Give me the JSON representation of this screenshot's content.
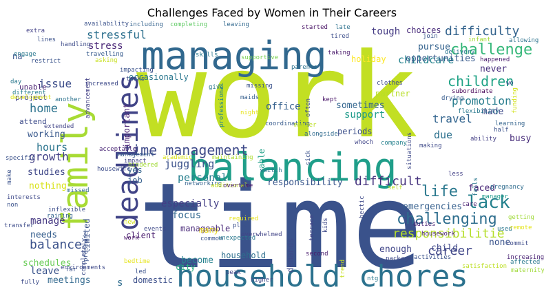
{
  "chart_data": {
    "type": "wordcloud",
    "title": "Challenges Faced by Women in Their Careers",
    "words": [
      {
        "text": "work",
        "color": "#c2df23"
      },
      {
        "text": "time",
        "color": "#3a528b"
      },
      {
        "text": "balancing",
        "color": "#1f9e89"
      },
      {
        "text": "household chores",
        "color": "#2c728e"
      },
      {
        "text": "managing",
        "color": "#31688e"
      },
      {
        "text": "family",
        "color": "#a8db34"
      },
      {
        "text": "deadlines",
        "color": "#414487"
      },
      {
        "text": "time management",
        "color": "#3e4a89"
      },
      {
        "text": "difficulty",
        "color": "#33638d"
      },
      {
        "text": "challenge",
        "color": "#35b779"
      },
      {
        "text": "lack",
        "color": "#26828e"
      },
      {
        "text": "challenging",
        "color": "#2e6e8e"
      },
      {
        "text": "responsibilitie",
        "color": "#b5de2b"
      },
      {
        "text": "life",
        "color": "#2a788e"
      },
      {
        "text": "career",
        "color": "#404688"
      },
      {
        "text": "difficult",
        "color": "#46337e"
      },
      {
        "text": "balance",
        "color": "#3b528b"
      },
      {
        "text": "children",
        "color": "#20a386"
      },
      {
        "text": "promotion",
        "color": "#287d8e"
      },
      {
        "text": "stressful",
        "color": "#2d708e"
      },
      {
        "text": "childcare",
        "color": "#25848e"
      },
      {
        "text": "travel",
        "color": "#32648e"
      },
      {
        "text": "home",
        "color": "#2c738e"
      },
      {
        "text": "issue",
        "color": "#3d4e8a"
      },
      {
        "text": "hours",
        "color": "#2b748e"
      },
      {
        "text": "juggling",
        "color": "#3b518b"
      },
      {
        "text": "growth",
        "color": "#424086"
      },
      {
        "text": "personal",
        "color": "#277f8e"
      },
      {
        "text": "support",
        "color": "#1e9b8a"
      },
      {
        "text": "stress",
        "color": "#482475"
      },
      {
        "text": "manage",
        "color": "#453882"
      },
      {
        "text": "focus",
        "color": "#31678e"
      },
      {
        "text": "especially",
        "color": "#433e85"
      },
      {
        "text": "responsibility",
        "color": "#39568c"
      },
      {
        "text": "emergencies",
        "color": "#355f8d"
      },
      {
        "text": "leave",
        "color": "#3a548c"
      },
      {
        "text": "due",
        "color": "#2d718e"
      },
      {
        "text": "sometimes",
        "color": "#32658e"
      },
      {
        "text": "tough",
        "color": "#443a83"
      },
      {
        "text": "opportunities",
        "color": "#375a8c"
      },
      {
        "text": "pursue",
        "color": "#33628d"
      },
      {
        "text": "office",
        "color": "#34608d"
      },
      {
        "text": "working",
        "color": "#38588c"
      },
      {
        "text": "nothing",
        "color": "#d8e219"
      },
      {
        "text": "studies",
        "color": "#3f4788"
      },
      {
        "text": "needs",
        "color": "#355e8d"
      },
      {
        "text": "meetings",
        "color": "#31688e"
      },
      {
        "text": "schedules",
        "color": "#6ccd5a"
      },
      {
        "text": "made",
        "color": "#3e4989"
      },
      {
        "text": "never",
        "color": "#472f7d"
      },
      {
        "text": "busy",
        "color": "#472c7a"
      },
      {
        "text": "faced",
        "color": "#482677"
      },
      {
        "text": "enough",
        "color": "#404588"
      },
      {
        "text": "none",
        "color": "#3a538b"
      },
      {
        "text": "child",
        "color": "#3f4889"
      },
      {
        "text": "periods",
        "color": "#3c4f8a"
      },
      {
        "text": "become",
        "color": "#26818e"
      },
      {
        "text": "domestic",
        "color": "#3c4f8a"
      },
      {
        "text": "city",
        "color": "#29af7f"
      },
      {
        "text": "client",
        "color": "#481c6e"
      },
      {
        "text": "household",
        "color": "#2e6f8e"
      },
      {
        "text": "manageable",
        "color": "#482878"
      },
      {
        "text": "many",
        "color": "#ead91d"
      },
      {
        "text": "limited",
        "color": "#3b528b"
      },
      {
        "text": "yes",
        "color": "#33638d"
      },
      {
        "text": "job",
        "color": "#355f8d"
      },
      {
        "text": "attend",
        "color": "#3e4c8a"
      },
      {
        "text": "unable",
        "color": "#481f70"
      },
      {
        "text": "project",
        "color": "#414487"
      },
      {
        "text": "holiday",
        "color": "#fde725"
      },
      {
        "text": "important",
        "color": "#482173"
      },
      {
        "text": "choices",
        "color": "#472a7a"
      },
      {
        "text": "partner",
        "color": "#b8de29"
      },
      {
        "text": "occasionally",
        "color": "#2a778e"
      },
      {
        "text": "able",
        "color": "#1fa088"
      },
      {
        "text": "demands",
        "color": "#3e4989"
      },
      {
        "text": "s",
        "color": "#2f6c8e"
      },
      {
        "text": "na",
        "color": "#3a538b"
      },
      {
        "text": "availability",
        "color": "#3b528b"
      },
      {
        "text": "extra",
        "color": "#424086"
      },
      {
        "text": "including",
        "color": "#33628d"
      },
      {
        "text": "completing",
        "color": "#5ec962"
      },
      {
        "text": "leaving",
        "color": "#31688e"
      },
      {
        "text": "started",
        "color": "#471164"
      },
      {
        "text": "late",
        "color": "#2d718e"
      },
      {
        "text": "tired",
        "color": "#3d4e8a"
      },
      {
        "text": "join",
        "color": "#39568c"
      },
      {
        "text": "infant",
        "color": "#a5db36"
      },
      {
        "text": "allowing",
        "color": "#2c738e"
      },
      {
        "text": "lines",
        "color": "#3b528b"
      },
      {
        "text": "handling",
        "color": "#3e4c8a"
      },
      {
        "text": "engage",
        "color": "#2a788e"
      },
      {
        "text": "restrict",
        "color": "#3a548c"
      },
      {
        "text": "travelling",
        "color": "#375b8d"
      },
      {
        "text": "asking",
        "color": "#c8e020"
      },
      {
        "text": "skills",
        "color": "#2a788e"
      },
      {
        "text": "supportive",
        "color": "#7ad151"
      },
      {
        "text": "taking",
        "color": "#481769"
      },
      {
        "text": "delivery",
        "color": "#2b748e"
      },
      {
        "text": "happened",
        "color": "#481a6c"
      },
      {
        "text": "parents",
        "color": "#2d718e"
      },
      {
        "text": "impacting",
        "color": "#3b528b"
      },
      {
        "text": "day",
        "color": "#2a788e"
      },
      {
        "text": "tasks",
        "color": "#3d4d8a"
      },
      {
        "text": "increased",
        "color": "#3e4a89"
      },
      {
        "text": "give",
        "color": "#2a788e"
      },
      {
        "text": "missing",
        "color": "#3b528b"
      },
      {
        "text": "clothes",
        "color": "#3e4a89"
      },
      {
        "text": "different",
        "color": "#277f8e"
      },
      {
        "text": "development",
        "color": "#dde318"
      },
      {
        "text": "maids",
        "color": "#355f8d"
      },
      {
        "text": "kept",
        "color": "#481467"
      },
      {
        "text": "drying",
        "color": "#375b8d"
      },
      {
        "text": "subordinate",
        "color": "#440154"
      },
      {
        "text": "wo",
        "color": "#3b528b"
      },
      {
        "text": "another",
        "color": "#2c738e"
      },
      {
        "text": "advancement",
        "color": "#424086"
      },
      {
        "text": "night",
        "color": "#e7e419"
      },
      {
        "text": "flexibility",
        "color": "#29798e"
      },
      {
        "text": "funding",
        "color": "#d2e21b"
      },
      {
        "text": "learning",
        "color": "#33638d"
      },
      {
        "text": "half",
        "color": "#3b528b"
      },
      {
        "text": "extended",
        "color": "#414487"
      },
      {
        "text": "professional",
        "color": "#25838e"
      },
      {
        "text": "coordinating",
        "color": "#375b8d"
      },
      {
        "text": "member",
        "color": "#bddf26"
      },
      {
        "text": "often",
        "color": "#3d4d8a"
      },
      {
        "text": "alongside",
        "color": "#2f6b8e"
      },
      {
        "text": "whoch",
        "color": "#404588"
      },
      {
        "text": "company",
        "color": "#26828e"
      },
      {
        "text": "making",
        "color": "#3e4a89"
      },
      {
        "text": "ability",
        "color": "#433e85"
      },
      {
        "text": "make",
        "color": "#3b528b"
      },
      {
        "text": "acceptable",
        "color": "#482475"
      },
      {
        "text": "management",
        "color": "#375a8c"
      },
      {
        "text": "impact",
        "color": "#414487"
      },
      {
        "text": "hindered",
        "color": "#a2da37"
      },
      {
        "text": "academic",
        "color": "#d8e219"
      },
      {
        "text": "maintaining",
        "color": "#addc30"
      },
      {
        "text": "situations",
        "color": "#3e4989"
      },
      {
        "text": "specific",
        "color": "#3b528b"
      },
      {
        "text": "housewife",
        "color": "#3d4d8a"
      },
      {
        "text": "switch",
        "color": "#2c738e"
      },
      {
        "text": "sick",
        "color": "#3b528b"
      },
      {
        "text": "less",
        "color": "#424086"
      },
      {
        "text": "falls",
        "color": "#2a788e"
      },
      {
        "text": "interests",
        "color": "#3e4989"
      },
      {
        "text": "missed",
        "color": "#31688e"
      },
      {
        "text": "networking",
        "color": "#33628d"
      },
      {
        "text": "additional",
        "color": "#c5e021"
      },
      {
        "text": "overtime",
        "color": "#481a6c"
      },
      {
        "text": "self",
        "color": "#bddf26"
      },
      {
        "text": "pregnancy",
        "color": "#2f6c8e"
      },
      {
        "text": "manager",
        "color": "#1f9a8a"
      },
      {
        "text": "non",
        "color": "#3b528b"
      },
      {
        "text": "inflexible",
        "color": "#3d4d8a"
      },
      {
        "text": "raining",
        "color": "#33638d"
      },
      {
        "text": "new",
        "color": "#d0e11c"
      },
      {
        "text": "required",
        "color": "#e7e419"
      },
      {
        "text": "care",
        "color": "#481f70"
      },
      {
        "text": "getting",
        "color": "#a0da39"
      },
      {
        "text": "used",
        "color": "#2a778e"
      },
      {
        "text": "place",
        "color": "#3b528b"
      },
      {
        "text": "terrace",
        "color": "#414487"
      },
      {
        "text": "hectic",
        "color": "#3e4989"
      },
      {
        "text": "transfer",
        "color": "#3e4c8a"
      },
      {
        "text": "work",
        "color": "#481467"
      },
      {
        "text": "overwhelmed",
        "color": "#414487"
      },
      {
        "text": "kids",
        "color": "#3e4989"
      },
      {
        "text": "duties",
        "color": "#482576"
      },
      {
        "text": "remote",
        "color": "#e5e419"
      },
      {
        "text": "pressure",
        "color": "#3b528b"
      },
      {
        "text": "events",
        "color": "#3e4989"
      },
      {
        "text": "housework",
        "color": "#482173"
      },
      {
        "text": "commit",
        "color": "#3e4c8a"
      },
      {
        "text": "completely",
        "color": "#3d4d8a"
      },
      {
        "text": "common",
        "color": "#3b528b"
      },
      {
        "text": "unexpected",
        "color": "#2a788e"
      },
      {
        "text": "second",
        "color": "#481a6c"
      },
      {
        "text": "package",
        "color": "#3e4989"
      },
      {
        "text": "activities",
        "color": "#3b528b"
      },
      {
        "text": "increasing",
        "color": "#482173"
      },
      {
        "text": "affected",
        "color": "#2a788e"
      },
      {
        "text": "bedtime",
        "color": "#e5e419"
      },
      {
        "text": "led",
        "color": "#3b528b"
      },
      {
        "text": "peak",
        "color": "#414487"
      },
      {
        "text": "higher",
        "color": "#3e4989"
      },
      {
        "text": "trend",
        "color": "#c8e020"
      },
      {
        "text": "satisfaction",
        "color": "#bddf26"
      },
      {
        "text": "maternity",
        "color": "#a0da39"
      },
      {
        "text": "environments",
        "color": "#3e4989"
      },
      {
        "text": "far",
        "color": "#3b528b"
      },
      {
        "text": "fully",
        "color": "#3e4c8a"
      },
      {
        "text": "ntg",
        "color": "#2a788e"
      },
      {
        "text": "ageing",
        "color": "#2c738e"
      },
      {
        "text": "small",
        "color": "#3d4d8a"
      }
    ]
  }
}
